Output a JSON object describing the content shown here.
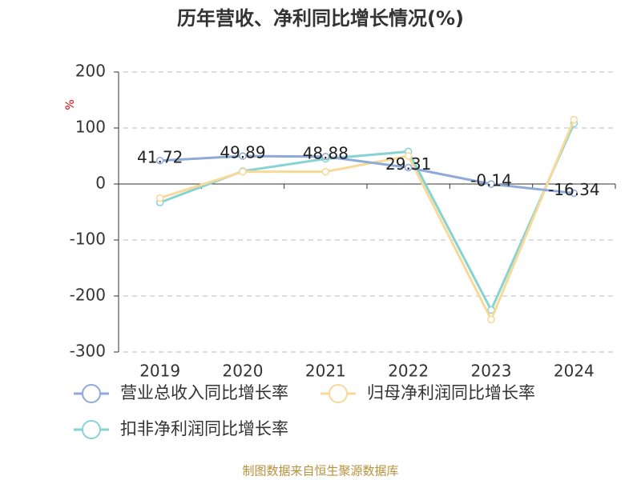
{
  "chart_data": {
    "type": "line",
    "title": "历年营收、净利同比增长情况(%)",
    "y_label": "%",
    "source": "制图数据来自恒生聚源数据库",
    "categories": [
      "2019",
      "2020",
      "2021",
      "2022",
      "2023",
      "2024"
    ],
    "series": [
      {
        "name": "营业总收入同比增长率",
        "color": "#8eaad9",
        "values": [
          41.72,
          49.89,
          48.88,
          29.31,
          -0.14,
          -16.34
        ],
        "show_labels": true
      },
      {
        "name": "归母净利润同比增长率",
        "color": "#f7d998",
        "values": [
          -25,
          22,
          22,
          50,
          -242,
          115
        ]
      },
      {
        "name": "扣非净利润同比增长率",
        "color": "#86d3d3",
        "values": [
          -33,
          23,
          45,
          58,
          -225,
          108
        ]
      }
    ],
    "ylim": [
      -300,
      200
    ],
    "yticks": [
      -300,
      -200,
      -100,
      0,
      100,
      200
    ],
    "grid": true
  }
}
